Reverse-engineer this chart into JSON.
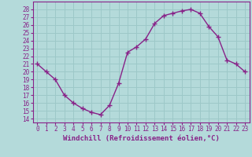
{
  "x": [
    0,
    1,
    2,
    3,
    4,
    5,
    6,
    7,
    8,
    9,
    10,
    11,
    12,
    13,
    14,
    15,
    16,
    17,
    18,
    19,
    20,
    21,
    22,
    23
  ],
  "y": [
    21,
    20,
    19,
    17,
    16,
    15.3,
    14.8,
    14.5,
    15.7,
    18.5,
    22.5,
    23.2,
    24.2,
    26.2,
    27.2,
    27.5,
    27.8,
    28,
    27.5,
    25.8,
    24.5,
    21.5,
    21,
    20
  ],
  "line_color": "#882288",
  "marker": "+",
  "marker_size": 4,
  "bg_color": "#b4dada",
  "grid_color": "#9dc8c8",
  "xlabel": "Windchill (Refroidissement éolien,°C)",
  "xlim": [
    -0.5,
    23.5
  ],
  "ylim": [
    13.5,
    29
  ],
  "yticks": [
    14,
    15,
    16,
    17,
    18,
    19,
    20,
    21,
    22,
    23,
    24,
    25,
    26,
    27,
    28
  ],
  "xticks": [
    0,
    1,
    2,
    3,
    4,
    5,
    6,
    7,
    8,
    9,
    10,
    11,
    12,
    13,
    14,
    15,
    16,
    17,
    18,
    19,
    20,
    21,
    22,
    23
  ],
  "tick_fontsize": 5.5,
  "label_fontsize": 6.5,
  "line_width": 1.0,
  "marker_lw": 1.0
}
